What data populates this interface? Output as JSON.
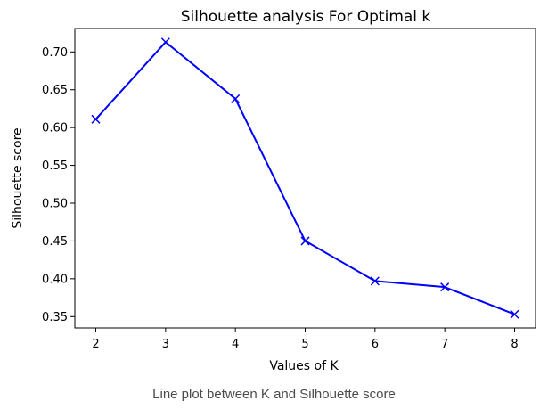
{
  "chart_data": {
    "type": "line",
    "title": "Silhouette analysis For Optimal k",
    "xlabel": "Values of K",
    "ylabel": "Silhouette score",
    "x": [
      2,
      3,
      4,
      5,
      6,
      7,
      8
    ],
    "series": [
      {
        "values": [
          0.611,
          0.713,
          0.638,
          0.45,
          0.397,
          0.389,
          0.353
        ],
        "color": "#0000ff",
        "marker": "x"
      }
    ],
    "xticks": [
      "2",
      "3",
      "4",
      "5",
      "6",
      "7",
      "8"
    ],
    "yticks": [
      "0.35",
      "0.40",
      "0.45",
      "0.50",
      "0.55",
      "0.60",
      "0.65",
      "0.70"
    ],
    "xlim": [
      1.7,
      8.3
    ],
    "ylim": [
      0.335,
      0.731
    ],
    "grid": false,
    "legend": "none"
  },
  "caption": "Line plot between K and Silhouette score"
}
